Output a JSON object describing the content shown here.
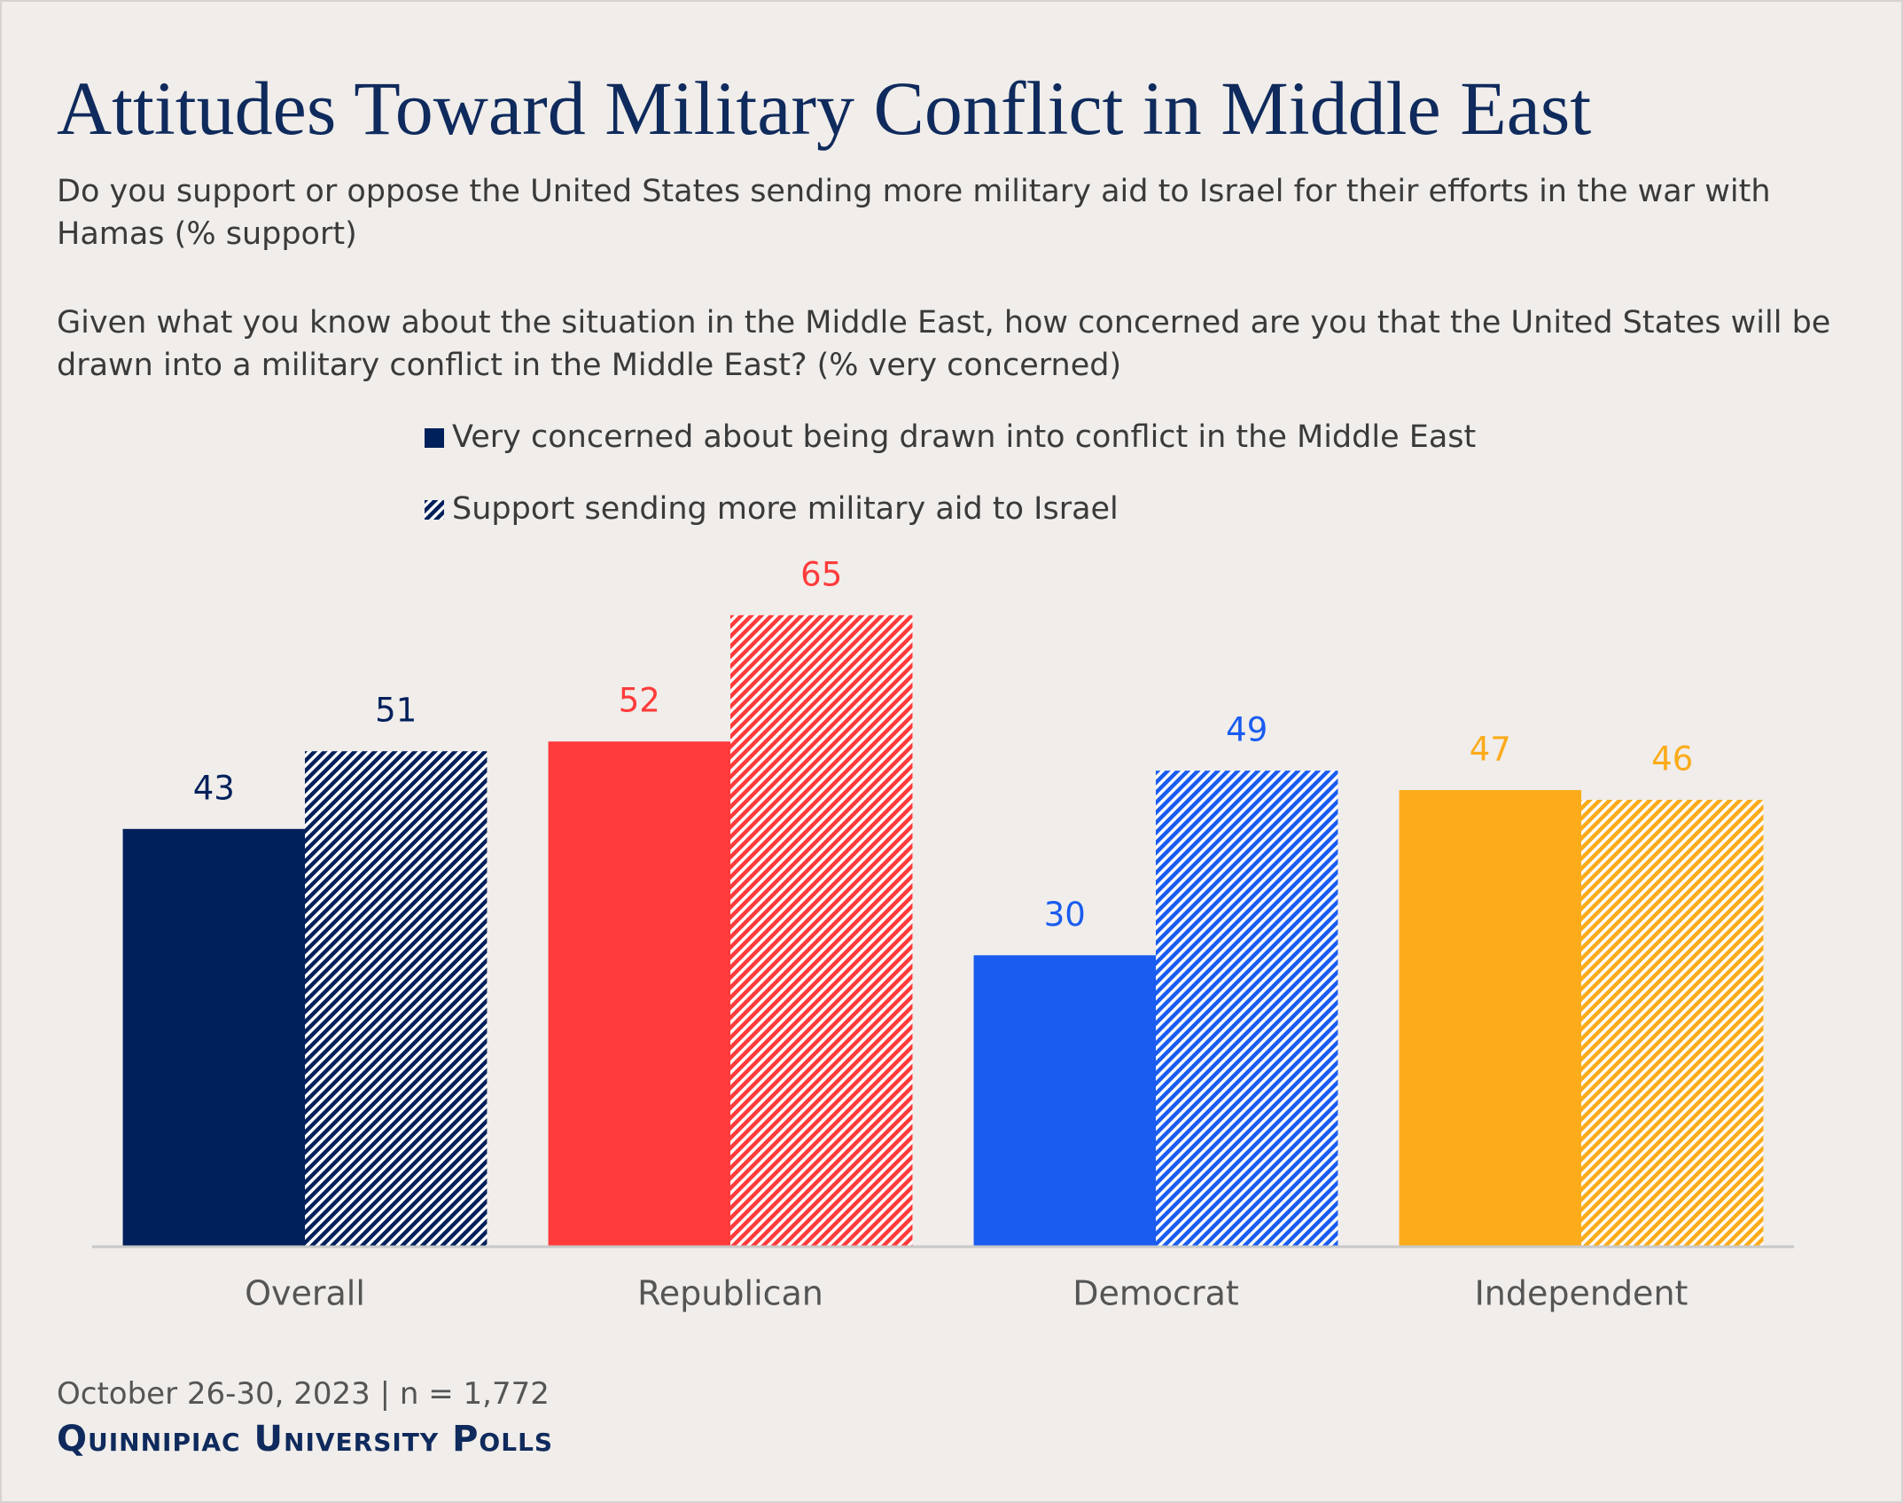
{
  "chart_data": {
    "type": "bar",
    "title": "Attitudes Toward Military Conflict in Middle East",
    "subtitles": [
      "Do you support or oppose the United States sending more military aid to Israel for their efforts in the war with Hamas (% support)",
      "Given what you know about the situation in the Middle East, how concerned are you that the United States will be drawn into a military conflict in the Middle East? (% very concerned)"
    ],
    "categories": [
      "Overall",
      "Republican",
      "Democrat",
      "Independent"
    ],
    "category_colors": [
      "#00205b",
      "#ff3b3b",
      "#1a5cf0",
      "#fcab1a"
    ],
    "series": [
      {
        "name": "Very concerned about being drawn into conflict in the Middle East",
        "pattern": "solid",
        "values": [
          43,
          52,
          30,
          47
        ]
      },
      {
        "name": "Support sending more military aid to Israel",
        "pattern": "hatched",
        "values": [
          51,
          65,
          49,
          46
        ]
      }
    ],
    "ylim": [
      0,
      70
    ],
    "grid": false,
    "note": "October 26-30, 2023 | n = 1,772",
    "source": "Quinnipiac University Polls"
  }
}
